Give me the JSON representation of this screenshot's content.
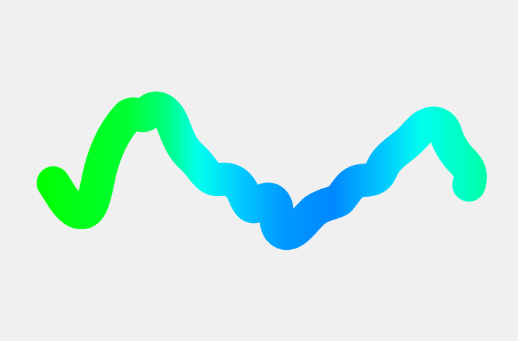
{
  "drawing": {
    "background_color": "#f0f0f0",
    "stroke_colors": [
      "#00ff00",
      "#00ff66",
      "#00ffdd",
      "#00ccff",
      "#0088ff",
      "#00aaff",
      "#00ffcc"
    ]
  }
}
